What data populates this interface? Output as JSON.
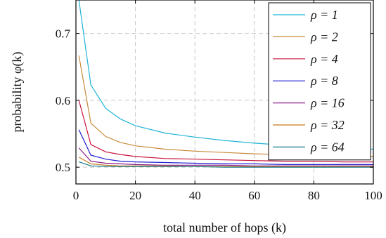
{
  "chart_data": {
    "type": "line",
    "xlabel": "total number of hops (k)",
    "ylabel": "probability φ(k)",
    "xlim": [
      0,
      100
    ],
    "ylim": [
      0.475,
      0.75
    ],
    "xticks": [
      0,
      20,
      40,
      60,
      80,
      100
    ],
    "yticks": [
      0.5,
      0.6,
      0.7
    ],
    "ytick_labels": [
      "0.5",
      "0.6",
      "0.7"
    ],
    "grid": true,
    "legend_position": "top-right",
    "x": [
      1,
      5,
      10,
      15,
      20,
      30,
      40,
      50,
      60,
      70,
      80,
      90,
      100
    ],
    "series": [
      {
        "name": "ρ = 1",
        "color": "#1fb4d8",
        "values": [
          0.75,
          0.623,
          0.588,
          0.572,
          0.562,
          0.551,
          0.545,
          0.54,
          0.536,
          0.533,
          0.531,
          0.529,
          0.527
        ]
      },
      {
        "name": "ρ = 2",
        "color": "#c88a3a",
        "values": [
          0.667,
          0.566,
          0.546,
          0.537,
          0.532,
          0.527,
          0.524,
          0.522,
          0.52,
          0.519,
          0.518,
          0.517,
          0.516
        ]
      },
      {
        "name": "ρ = 4",
        "color": "#c8143c",
        "values": [
          0.6,
          0.534,
          0.523,
          0.519,
          0.516,
          0.513,
          0.512,
          0.511,
          0.51,
          0.509,
          0.509,
          0.508,
          0.508
        ]
      },
      {
        "name": "ρ = 8",
        "color": "#1f1fd0",
        "values": [
          0.556,
          0.518,
          0.512,
          0.509,
          0.508,
          0.507,
          0.506,
          0.505,
          0.505,
          0.504,
          0.504,
          0.504,
          0.504
        ]
      },
      {
        "name": "ρ = 16",
        "color": "#8a1a8a",
        "values": [
          0.529,
          0.509,
          0.506,
          0.505,
          0.504,
          0.503,
          0.503,
          0.503,
          0.502,
          0.502,
          0.502,
          0.502,
          0.502
        ]
      },
      {
        "name": "ρ = 32",
        "color": "#c87a1a",
        "values": [
          0.515,
          0.505,
          0.503,
          0.502,
          0.502,
          0.502,
          0.501,
          0.501,
          0.501,
          0.501,
          0.501,
          0.501,
          0.501
        ]
      },
      {
        "name": "ρ = 64",
        "color": "#117a8a",
        "values": [
          0.508,
          0.502,
          0.501,
          0.501,
          0.501,
          0.501,
          0.501,
          0.5,
          0.5,
          0.5,
          0.5,
          0.5,
          0.5
        ]
      }
    ]
  }
}
